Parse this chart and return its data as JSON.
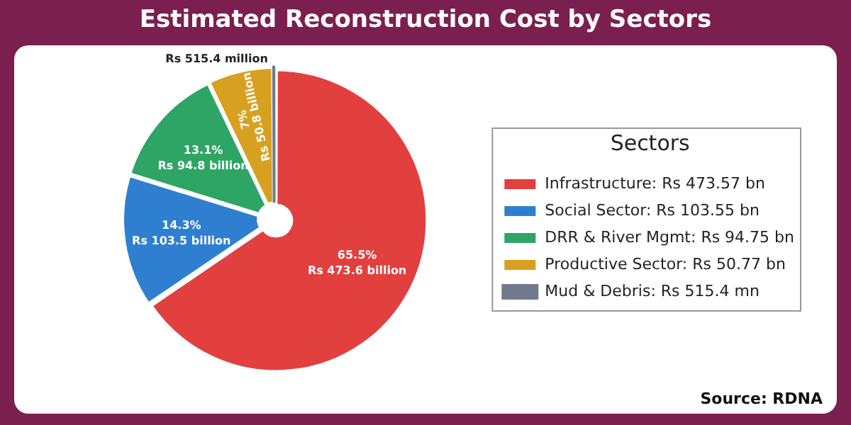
{
  "chart_data": {
    "type": "pie",
    "title": "Estimated Reconstruction Cost by Sectors",
    "legend_title": "Sectors",
    "legend": "right",
    "categories": [
      "Infrastructure: Rs 473.57 bn",
      "Social Sector: Rs 103.55 bn",
      "DRR & River Mgmt: Rs 94.75 bn",
      "Productive Sector: Rs 50.77 bn",
      "Mud & Debris: Rs 515.4 mn"
    ],
    "values": [
      65.5,
      14.3,
      13.1,
      7,
      0.1
    ],
    "colors": [
      "#e23f3f",
      "#2f7fd1",
      "#2ea565",
      "#d8a021",
      "#6f7b8c"
    ],
    "value_labels": [
      "65.5%\nRs 473.6 billion",
      "14.3%\nRs 103.5 billion",
      "13.1%\nRs 94.8 billion",
      "7%\nRs 50.8 billion",
      "Rs 515.4 million"
    ],
    "annotations": [
      "Source: RDNA"
    ]
  }
}
